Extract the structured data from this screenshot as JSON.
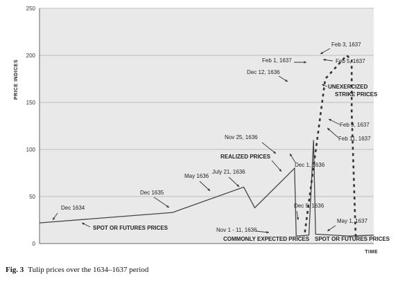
{
  "chart_data": {
    "type": "line",
    "ylabel": "PRICE INDICES",
    "xlabel": "TIME",
    "ylim": [
      0,
      250
    ],
    "yticks": [
      0,
      50,
      100,
      150,
      200,
      250
    ],
    "grid": true,
    "realized_series": {
      "points": [
        {
          "x": 0.0,
          "y": 22
        },
        {
          "x": 0.398,
          "y": 33
        },
        {
          "x": 0.611,
          "y": 60
        },
        {
          "x": 0.644,
          "y": 38
        },
        {
          "x": 0.763,
          "y": 80
        },
        {
          "x": 0.768,
          "y": 8
        },
        {
          "x": 0.806,
          "y": 9
        },
        {
          "x": 0.82,
          "y": 110
        },
        {
          "x": 0.826,
          "y": 10
        },
        {
          "x": 0.926,
          "y": 8
        },
        {
          "x": 1.0,
          "y": 9
        }
      ]
    },
    "unexercized_series": {
      "points": [
        {
          "x": 0.794,
          "y": 12
        },
        {
          "x": 0.855,
          "y": 175
        },
        {
          "x": 0.919,
          "y": 200
        },
        {
          "x": 0.934,
          "y": 195
        },
        {
          "x": 0.934,
          "y": 140
        },
        {
          "x": 0.946,
          "y": 7
        }
      ]
    },
    "annotations": [
      {
        "id": "dec1634",
        "text": "Dec 1634",
        "bold": false
      },
      {
        "id": "spot1",
        "text": "SPOT OR FUTURES PRICES",
        "bold": true
      },
      {
        "id": "dec1635",
        "text": "Dec 1635",
        "bold": false
      },
      {
        "id": "may1636",
        "text": "May 1636",
        "bold": false
      },
      {
        "id": "jul1636",
        "text": "July 21, 1636",
        "bold": false
      },
      {
        "id": "realized",
        "text": "REALIZED PRICES",
        "bold": true
      },
      {
        "id": "nov25",
        "text": "Nov 25, 1636",
        "bold": false
      },
      {
        "id": "dec1",
        "text": "Dec 1, 1636",
        "bold": false
      },
      {
        "id": "dec12",
        "text": "Dec 12, 1636",
        "bold": false
      },
      {
        "id": "feb1",
        "text": "Feb 1, 1637",
        "bold": false
      },
      {
        "id": "feb3",
        "text": "Feb 3, 1637",
        "bold": false
      },
      {
        "id": "feb5",
        "text": "Feb 5, 1637",
        "bold": false
      },
      {
        "id": "unex",
        "text": "UNEXERCIZED\nSTRIKE PRICES",
        "bold": true
      },
      {
        "id": "feb9",
        "text": "Feb 9, 1637",
        "bold": false
      },
      {
        "id": "feb11",
        "text": "Feb 11, 1637",
        "bold": false
      },
      {
        "id": "nov1",
        "text": "Nov 1 - 11, 1636",
        "bold": false
      },
      {
        "id": "common",
        "text": "COMMONLY EXPECTED PRICES",
        "bold": true
      },
      {
        "id": "dec9",
        "text": "Dec 9, 1636",
        "bold": false
      },
      {
        "id": "may1637",
        "text": "May 1, 1637",
        "bold": false
      },
      {
        "id": "spot2",
        "text": "SPOT OR FUTURES PRICES",
        "bold": true
      }
    ]
  },
  "caption": {
    "figure_number": "Fig. 3",
    "text": "Tulip prices over the 1634–1637 period"
  }
}
